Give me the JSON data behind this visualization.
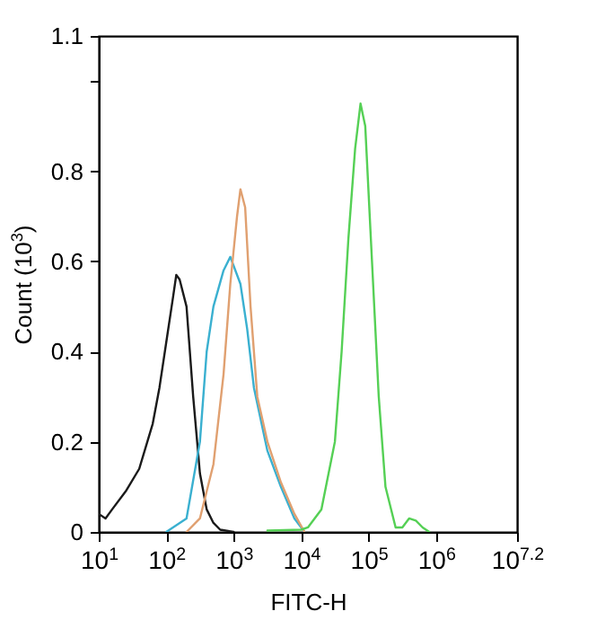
{
  "chart_data": {
    "type": "line",
    "xlabel": "FITC-H",
    "ylabel": "Count (10$^{3}$)",
    "log": "x",
    "grid": false,
    "marker": "none",
    "line_style": "solid",
    "xlim": [
      10,
      15848931.92
    ],
    "xticks": [
      {
        "value": 10,
        "label": "10$^{1}$"
      },
      {
        "value": 100,
        "label": "10$^{2}$"
      },
      {
        "value": 1000,
        "label": "10$^{3}$"
      },
      {
        "value": 10000,
        "label": "10$^{4}$"
      },
      {
        "value": 100000,
        "label": "10$^{5}$"
      },
      {
        "value": 1000000,
        "label": "10$^{6}$"
      },
      {
        "value": 15848931.92,
        "label": "10$^{7.2}$"
      }
    ],
    "ylim": [
      0,
      1.1
    ],
    "yticks": [
      0,
      0.2,
      0.4,
      0.6,
      0.8,
      {
        "value": 1.0,
        "label": null
      },
      1.1
    ],
    "series": [
      {
        "color": "#1a1a1a",
        "x": [
          10,
          12.6,
          15.8,
          25.1,
          39.8,
          63.1,
          79.4,
          100,
          126,
          141,
          158,
          200,
          251,
          316,
          398,
          501,
          631,
          1000
        ],
        "values": [
          0.04,
          0.03,
          0.05,
          0.09,
          0.14,
          0.24,
          0.32,
          0.42,
          0.52,
          0.57,
          0.56,
          0.5,
          0.3,
          0.13,
          0.05,
          0.02,
          0.005,
          0
        ]
      },
      {
        "color": "#3ab0d0",
        "x": [
          100,
          200,
          316,
          398,
          501,
          708,
          891,
          1259,
          1585,
          1995,
          3162,
          5012,
          7943,
          11220
        ],
        "values": [
          0,
          0.03,
          0.2,
          0.4,
          0.5,
          0.58,
          0.61,
          0.55,
          0.45,
          0.32,
          0.18,
          0.1,
          0.03,
          0
        ]
      },
      {
        "color": "#e0a070",
        "x": [
          200,
          316,
          501,
          708,
          891,
          1122,
          1259,
          1479,
          1778,
          2239,
          3162,
          5012,
          7943,
          11220
        ],
        "values": [
          0,
          0.03,
          0.15,
          0.35,
          0.55,
          0.7,
          0.76,
          0.72,
          0.5,
          0.3,
          0.2,
          0.11,
          0.04,
          0
        ]
      },
      {
        "color": "#55d055",
        "x": [
          3162,
          10000,
          12590,
          19950,
          31620,
          39810,
          50120,
          63100,
          75860,
          89130,
          112200,
          141300,
          177800,
          251200,
          316200,
          398100,
          501200,
          631000,
          794300
        ],
        "values": [
          0.003,
          0.005,
          0.01,
          0.05,
          0.2,
          0.4,
          0.65,
          0.85,
          0.95,
          0.9,
          0.6,
          0.3,
          0.1,
          0.01,
          0.01,
          0.03,
          0.025,
          0.01,
          0
        ]
      }
    ]
  }
}
